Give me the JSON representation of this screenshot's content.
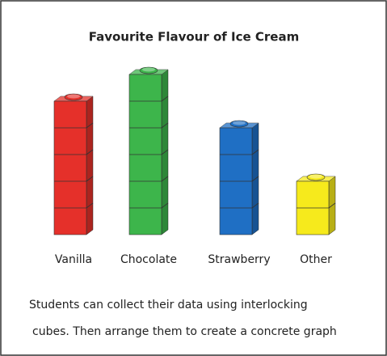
{
  "chart_data": {
    "type": "bar",
    "title": "Favourite Flavour of Ice Cream",
    "categories": [
      "Vanilla",
      "Chocolate",
      "Strawberry",
      "Other"
    ],
    "values": [
      5,
      6,
      4,
      2
    ],
    "colors": [
      "#e5302a",
      "#3db54b",
      "#1f6fc4",
      "#f6ea1c"
    ],
    "annotations": [
      "Students can collect their data using interlocking",
      "cubes. Then arrange them to create a concrete graph"
    ]
  }
}
